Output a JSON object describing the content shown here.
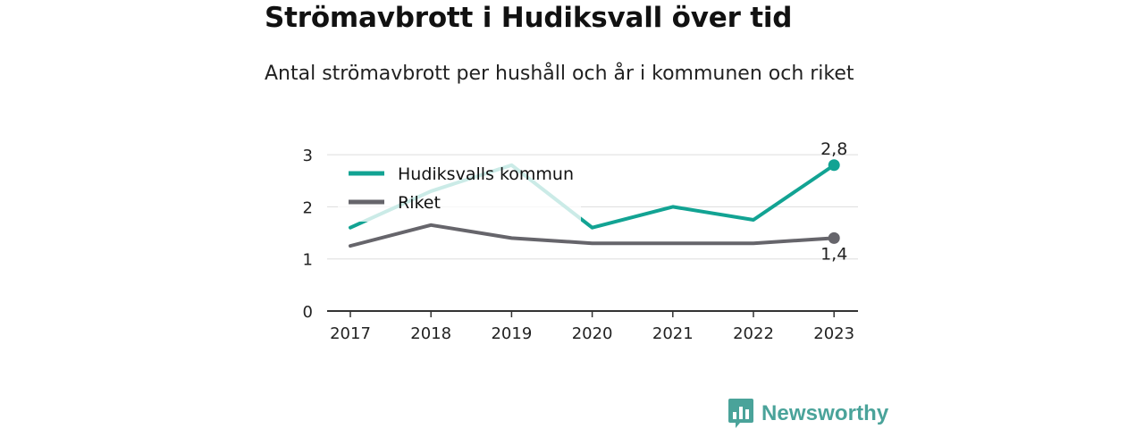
{
  "title": "Strömavbrott i Hudiksvall över tid",
  "subtitle": "Antal strömavbrott per hushåll och år i kommunen och riket",
  "brand": {
    "name": "Newsworthy",
    "color": "#4aa39a",
    "icon": "bar-chart-icon"
  },
  "chart_data": {
    "type": "line",
    "categories": [
      "2017",
      "2018",
      "2019",
      "2020",
      "2021",
      "2022",
      "2023"
    ],
    "ylim": [
      0,
      3
    ],
    "yticks": [
      0,
      1,
      2,
      3
    ],
    "grid": true,
    "legend": "top-left",
    "series": [
      {
        "name": "Hudiksvalls kommun",
        "color": "#12a393",
        "values": [
          1.6,
          2.3,
          2.8,
          1.6,
          2.0,
          1.75,
          2.8
        ],
        "end_label": "2,8"
      },
      {
        "name": "Riket",
        "color": "#66656b",
        "values": [
          1.25,
          1.65,
          1.4,
          1.3,
          1.3,
          1.3,
          1.4
        ],
        "end_label": "1,4"
      }
    ]
  }
}
